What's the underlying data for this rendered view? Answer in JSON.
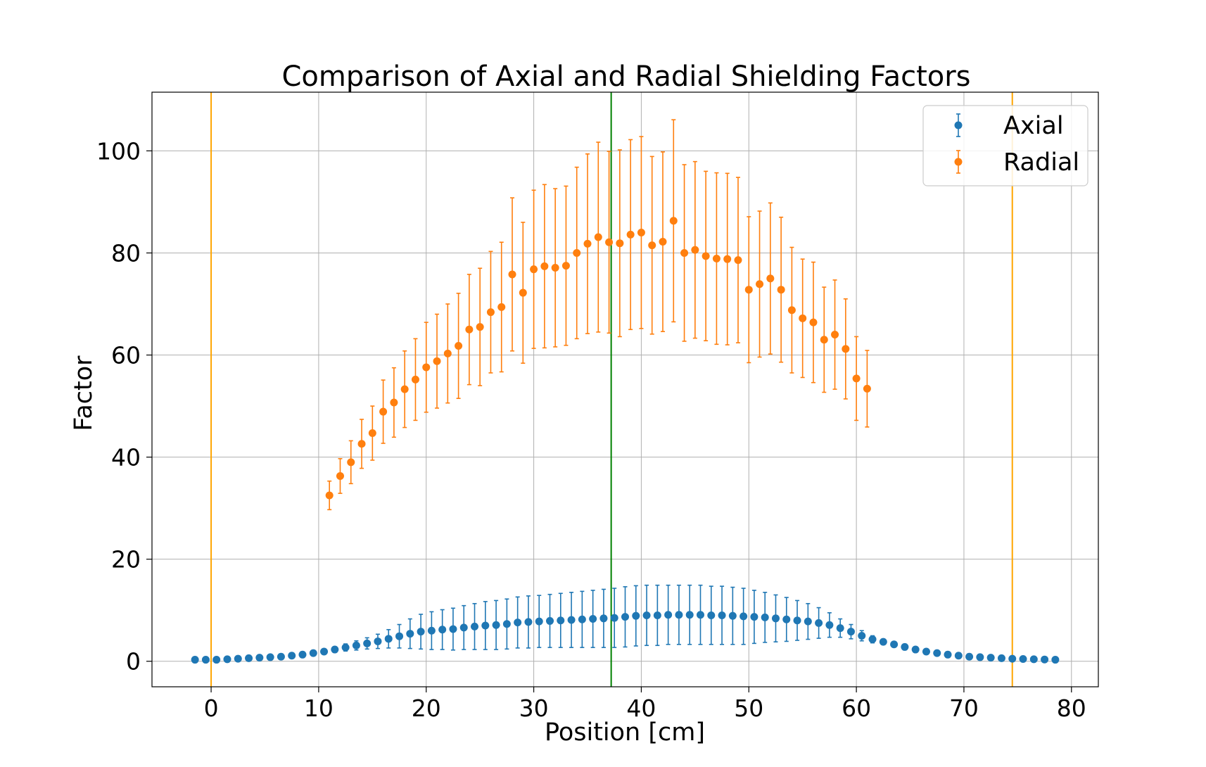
{
  "chart_data": {
    "type": "scatter",
    "title": "Comparison of Axial and Radial Shielding Factors",
    "xlabel": "Position [cm]",
    "ylabel": "Factor",
    "xlim": [
      -5.5,
      82.5
    ],
    "ylim": [
      -5,
      111.5
    ],
    "xticks": [
      0,
      10,
      20,
      30,
      40,
      50,
      60,
      70,
      80
    ],
    "yticks": [
      0,
      20,
      40,
      60,
      80,
      100
    ],
    "grid": true,
    "legend": {
      "position": "top-right",
      "entries": [
        "Axial",
        "Radial"
      ]
    },
    "vlines": [
      {
        "x": 0,
        "color": "#ffa500"
      },
      {
        "x": 37.2,
        "color": "#008000"
      },
      {
        "x": 74.5,
        "color": "#ffa500"
      }
    ],
    "series": [
      {
        "name": "Axial",
        "color": "#1f77b4",
        "x": [
          -1.5,
          -0.5,
          0.5,
          1.5,
          2.5,
          3.5,
          4.5,
          5.5,
          6.5,
          7.5,
          8.5,
          9.5,
          10.5,
          11.5,
          12.5,
          13.5,
          14.5,
          15.5,
          16.5,
          17.5,
          18.5,
          19.5,
          20.5,
          21.5,
          22.5,
          23.5,
          24.5,
          25.5,
          26.5,
          27.5,
          28.5,
          29.5,
          30.5,
          31.5,
          32.5,
          33.5,
          34.5,
          35.5,
          36.5,
          37.5,
          38.5,
          39.5,
          40.5,
          41.5,
          42.5,
          43.5,
          44.5,
          45.5,
          46.5,
          47.5,
          48.5,
          49.5,
          50.5,
          51.5,
          52.5,
          53.5,
          54.5,
          55.5,
          56.5,
          57.5,
          58.5,
          59.5,
          60.5,
          61.5,
          62.5,
          63.5,
          64.5,
          65.5,
          66.5,
          67.5,
          68.5,
          69.5,
          70.5,
          71.5,
          72.5,
          73.5,
          74.5,
          75.5,
          76.5,
          77.5,
          78.5
        ],
        "y": [
          0.3,
          0.3,
          0.3,
          0.4,
          0.5,
          0.6,
          0.7,
          0.8,
          0.9,
          1.1,
          1.3,
          1.6,
          1.9,
          2.3,
          2.7,
          3.1,
          3.5,
          3.9,
          4.4,
          4.9,
          5.4,
          5.8,
          6.0,
          6.2,
          6.3,
          6.6,
          6.8,
          7.0,
          7.1,
          7.3,
          7.6,
          7.7,
          7.8,
          7.9,
          8.0,
          8.1,
          8.2,
          8.3,
          8.4,
          8.5,
          8.7,
          8.9,
          9.0,
          9.0,
          9.1,
          9.1,
          9.1,
          9.1,
          9.0,
          9.0,
          8.9,
          8.8,
          8.7,
          8.6,
          8.4,
          8.2,
          8.0,
          7.8,
          7.5,
          7.1,
          6.5,
          5.8,
          5.0,
          4.3,
          3.8,
          3.3,
          2.8,
          2.3,
          1.9,
          1.6,
          1.3,
          1.1,
          0.9,
          0.8,
          0.7,
          0.6,
          0.5,
          0.45,
          0.4,
          0.35,
          0.3
        ],
        "yerr": [
          0.2,
          0.2,
          0.2,
          0.2,
          0.2,
          0.2,
          0.2,
          0.2,
          0.2,
          0.2,
          0.3,
          0.3,
          0.4,
          0.5,
          0.7,
          0.9,
          1.1,
          1.4,
          1.8,
          2.3,
          2.9,
          3.4,
          3.7,
          3.9,
          4.1,
          4.3,
          4.5,
          4.7,
          4.8,
          4.9,
          5.0,
          5.1,
          5.1,
          5.2,
          5.3,
          5.4,
          5.5,
          5.6,
          5.7,
          5.8,
          5.9,
          5.9,
          5.9,
          5.9,
          5.8,
          5.8,
          5.8,
          5.8,
          5.7,
          5.7,
          5.6,
          5.5,
          5.2,
          4.9,
          4.6,
          4.3,
          3.9,
          3.5,
          3.0,
          2.4,
          1.8,
          1.4,
          1.0,
          0.7,
          0.5,
          0.4,
          0.3,
          0.3,
          0.2,
          0.2,
          0.2,
          0.2,
          0.2,
          0.2,
          0.2,
          0.2,
          0.2,
          0.2,
          0.2,
          0.2,
          0.2
        ]
      },
      {
        "name": "Radial",
        "color": "#ff7f0e",
        "x": [
          11,
          12,
          13,
          14,
          15,
          16,
          17,
          18,
          19,
          20,
          21,
          22,
          23,
          24,
          25,
          26,
          27,
          28,
          29,
          30,
          31,
          32,
          33,
          34,
          35,
          36,
          37,
          38,
          39,
          40,
          41,
          42,
          43,
          44,
          45,
          46,
          47,
          48,
          49,
          50,
          51,
          52,
          53,
          54,
          55,
          56,
          57,
          58,
          59,
          60,
          61
        ],
        "y": [
          32.5,
          36.3,
          39.0,
          42.6,
          44.7,
          48.9,
          50.7,
          53.3,
          55.2,
          57.6,
          58.8,
          60.3,
          61.8,
          65.0,
          65.5,
          68.4,
          69.4,
          75.8,
          72.2,
          76.8,
          77.4,
          77.1,
          77.5,
          80.0,
          81.8,
          83.1,
          82.1,
          81.9,
          83.6,
          84.0,
          81.5,
          82.2,
          86.3,
          80.0,
          80.6,
          79.4,
          78.9,
          78.8,
          78.6,
          72.8,
          73.9,
          75.0,
          72.8,
          68.8,
          67.2,
          66.4,
          63.0,
          64.0,
          61.2,
          55.4,
          53.4
        ],
        "yerr": [
          2.8,
          3.4,
          4.2,
          4.8,
          5.3,
          6.2,
          6.8,
          7.5,
          8.0,
          8.8,
          9.2,
          9.7,
          10.3,
          10.8,
          11.5,
          11.9,
          12.7,
          15.0,
          13.8,
          15.5,
          16.0,
          15.5,
          15.6,
          16.8,
          17.6,
          18.6,
          17.8,
          18.3,
          18.6,
          18.8,
          17.4,
          17.6,
          19.8,
          17.3,
          17.3,
          16.6,
          16.8,
          16.8,
          16.2,
          14.3,
          14.3,
          14.8,
          14.2,
          12.3,
          11.6,
          11.8,
          10.3,
          10.7,
          9.8,
          8.2,
          7.5
        ]
      }
    ]
  }
}
